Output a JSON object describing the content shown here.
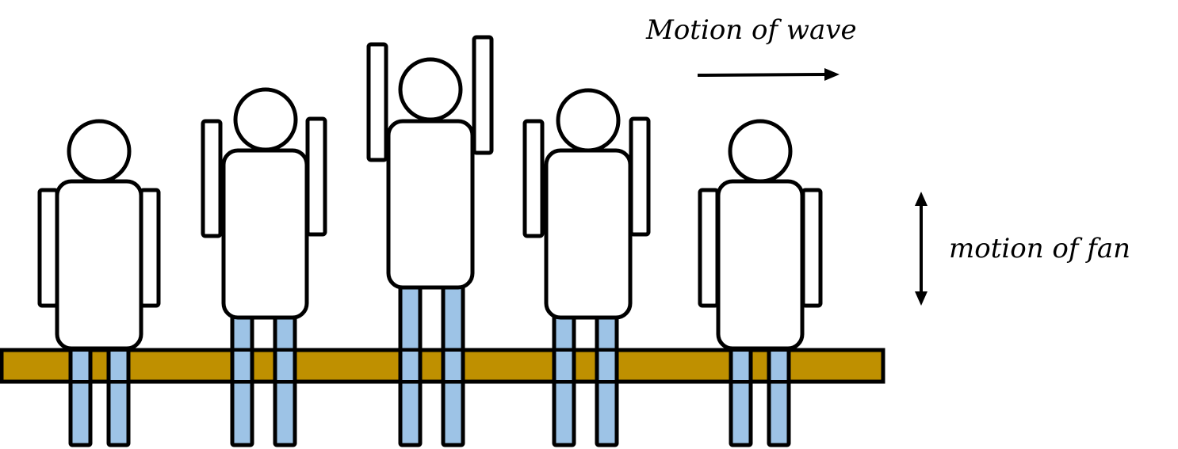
{
  "labels": {
    "wave_motion": "Motion of wave",
    "fan_motion": "motion of fan"
  },
  "colors": {
    "bench": "#bf9000",
    "legs": "#9dc3e6",
    "outline": "#000000",
    "body": "#ffffff"
  },
  "fans": [
    {
      "pose": "arms-down"
    },
    {
      "pose": "arms-half-raised"
    },
    {
      "pose": "arms-fully-raised"
    },
    {
      "pose": "arms-half-raised"
    },
    {
      "pose": "arms-down"
    }
  ]
}
